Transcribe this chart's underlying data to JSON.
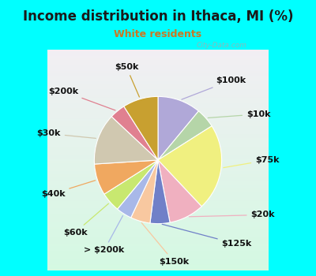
{
  "title": "Income distribution in Ithaca, MI (%)",
  "subtitle": "White residents",
  "title_color": "#1a1a1a",
  "subtitle_color": "#cc7722",
  "background_color": "#00ffff",
  "chart_bg_gradient": true,
  "labels": [
    "$100k",
    "$10k",
    "$75k",
    "$20k",
    "$125k",
    "$150k",
    "> $200k",
    "$60k",
    "$40k",
    "$30k",
    "$200k",
    "$50k"
  ],
  "values": [
    11,
    5,
    22,
    9,
    5,
    5,
    4,
    5,
    8,
    13,
    4,
    9
  ],
  "colors": [
    "#b0a8d8",
    "#b5d5a8",
    "#f0f080",
    "#f0b0c0",
    "#7080c8",
    "#f8c8a0",
    "#a8b8e8",
    "#c8e870",
    "#f0a860",
    "#d0c8b0",
    "#e08090",
    "#c8a030"
  ],
  "label_fontsize": 8,
  "watermark": "City-Data.com",
  "title_fontsize": 12,
  "subtitle_fontsize": 9
}
